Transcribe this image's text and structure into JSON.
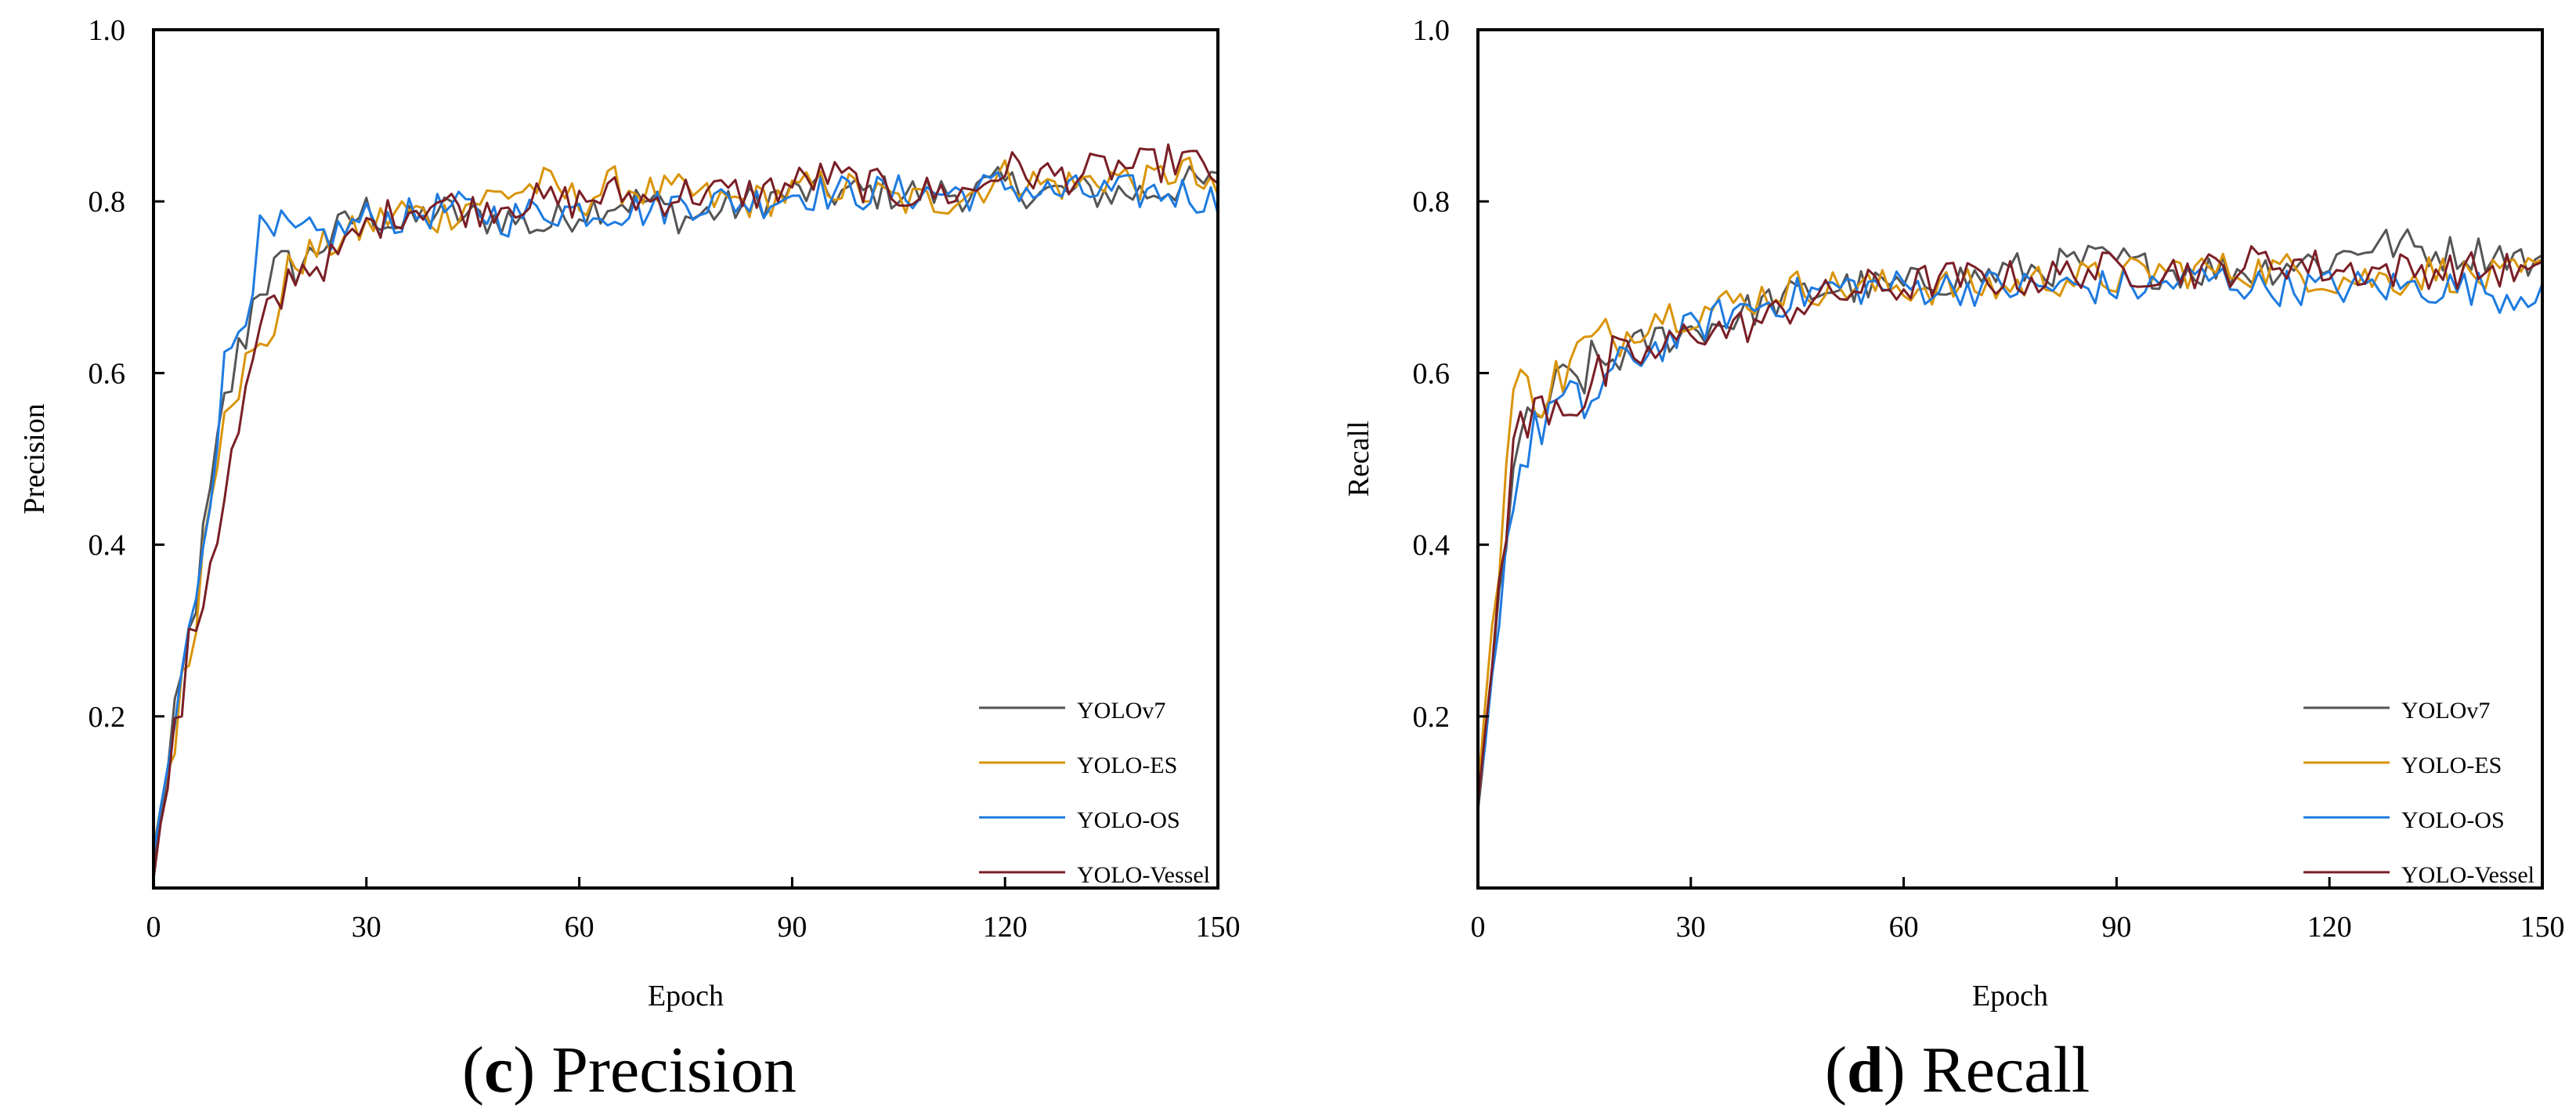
{
  "figure": {
    "panels": [
      {
        "letter": "c",
        "caption_text": "Precision"
      },
      {
        "letter": "d",
        "caption_text": "Recall"
      }
    ]
  },
  "colors": {
    "YOLOv7": "#555555",
    "YOLO-ES": "#D9940A",
    "YOLO-OS": "#1E7BE0",
    "YOLO-Vessel": "#7A1E26",
    "axis": "#000000"
  },
  "chart_data": [
    {
      "type": "line",
      "title": "",
      "xlabel": "Epoch",
      "ylabel": "Precision",
      "xlim": [
        0,
        150
      ],
      "ylim": [
        0,
        1.0
      ],
      "x_ticks": [
        0,
        30,
        60,
        90,
        120,
        150
      ],
      "y_ticks": [
        0.2,
        0.4,
        0.6,
        0.8,
        1.0
      ],
      "y_tick_labels": [
        "0.2",
        "0.4",
        "0.6",
        "0.8",
        "1.0"
      ],
      "grid": false,
      "legend_position": "bottom-right",
      "x": [
        0,
        5,
        10,
        15,
        20,
        25,
        30,
        35,
        40,
        45,
        50,
        55,
        60,
        65,
        70,
        75,
        80,
        85,
        90,
        95,
        100,
        105,
        110,
        115,
        120,
        125,
        130,
        135,
        140,
        145,
        150
      ],
      "series": [
        {
          "name": "YOLOv7",
          "values": [
            0.03,
            0.29,
            0.56,
            0.71,
            0.72,
            0.76,
            0.79,
            0.77,
            0.79,
            0.78,
            0.78,
            0.77,
            0.79,
            0.8,
            0.8,
            0.78,
            0.79,
            0.8,
            0.81,
            0.81,
            0.81,
            0.81,
            0.81,
            0.81,
            0.82,
            0.81,
            0.81,
            0.81,
            0.81,
            0.82,
            0.82
          ]
        },
        {
          "name": "YOLO-ES",
          "values": [
            0.05,
            0.27,
            0.58,
            0.62,
            0.73,
            0.75,
            0.77,
            0.79,
            0.78,
            0.8,
            0.81,
            0.82,
            0.8,
            0.82,
            0.81,
            0.81,
            0.8,
            0.8,
            0.81,
            0.82,
            0.81,
            0.8,
            0.8,
            0.81,
            0.83,
            0.82,
            0.82,
            0.83,
            0.82,
            0.84,
            0.8
          ]
        },
        {
          "name": "YOLO-OS",
          "values": [
            0.04,
            0.29,
            0.6,
            0.75,
            0.76,
            0.76,
            0.78,
            0.78,
            0.79,
            0.79,
            0.78,
            0.79,
            0.79,
            0.79,
            0.79,
            0.8,
            0.8,
            0.8,
            0.81,
            0.81,
            0.81,
            0.81,
            0.81,
            0.81,
            0.82,
            0.81,
            0.81,
            0.81,
            0.81,
            0.81,
            0.8
          ]
        },
        {
          "name": "YOLO-Vessel",
          "values": [
            0.02,
            0.27,
            0.46,
            0.64,
            0.72,
            0.73,
            0.77,
            0.79,
            0.8,
            0.79,
            0.8,
            0.8,
            0.8,
            0.81,
            0.8,
            0.81,
            0.81,
            0.81,
            0.82,
            0.83,
            0.82,
            0.81,
            0.81,
            0.81,
            0.84,
            0.83,
            0.83,
            0.84,
            0.84,
            0.85,
            0.83
          ]
        }
      ]
    },
    {
      "type": "line",
      "title": "",
      "xlabel": "Epoch",
      "ylabel": "Recall",
      "xlim": [
        0,
        150
      ],
      "ylim": [
        0,
        1.0
      ],
      "x_ticks": [
        0,
        30,
        60,
        90,
        120,
        150
      ],
      "y_ticks": [
        0.2,
        0.4,
        0.6,
        0.8,
        1.0
      ],
      "y_tick_labels": [
        "0.2",
        "0.4",
        "0.6",
        "0.8",
        "1.0"
      ],
      "grid": false,
      "legend_position": "bottom-right",
      "x": [
        0,
        5,
        10,
        15,
        20,
        25,
        30,
        35,
        40,
        45,
        50,
        55,
        60,
        65,
        70,
        75,
        80,
        85,
        90,
        95,
        100,
        105,
        110,
        115,
        120,
        125,
        130,
        135,
        140,
        145,
        150
      ],
      "series": [
        {
          "name": "YOLOv7",
          "values": [
            0.08,
            0.5,
            0.57,
            0.6,
            0.62,
            0.64,
            0.65,
            0.66,
            0.68,
            0.69,
            0.7,
            0.7,
            0.7,
            0.71,
            0.71,
            0.72,
            0.72,
            0.73,
            0.73,
            0.72,
            0.72,
            0.72,
            0.72,
            0.73,
            0.73,
            0.75,
            0.75,
            0.74,
            0.74,
            0.74,
            0.72
          ]
        },
        {
          "name": "YOLO-ES",
          "values": [
            0.12,
            0.58,
            0.58,
            0.63,
            0.64,
            0.67,
            0.67,
            0.68,
            0.69,
            0.7,
            0.7,
            0.7,
            0.7,
            0.7,
            0.7,
            0.7,
            0.71,
            0.71,
            0.71,
            0.72,
            0.72,
            0.72,
            0.72,
            0.72,
            0.71,
            0.71,
            0.71,
            0.72,
            0.71,
            0.71,
            0.72
          ]
        },
        {
          "name": "YOLO-OS",
          "values": [
            0.1,
            0.47,
            0.56,
            0.56,
            0.61,
            0.63,
            0.65,
            0.67,
            0.68,
            0.69,
            0.7,
            0.7,
            0.7,
            0.7,
            0.7,
            0.7,
            0.7,
            0.7,
            0.7,
            0.7,
            0.71,
            0.71,
            0.7,
            0.7,
            0.7,
            0.7,
            0.7,
            0.7,
            0.7,
            0.69,
            0.7
          ]
        },
        {
          "name": "YOLO-Vessel",
          "values": [
            0.09,
            0.52,
            0.57,
            0.57,
            0.62,
            0.62,
            0.65,
            0.65,
            0.66,
            0.68,
            0.69,
            0.7,
            0.7,
            0.71,
            0.71,
            0.71,
            0.71,
            0.72,
            0.72,
            0.72,
            0.72,
            0.72,
            0.73,
            0.73,
            0.72,
            0.72,
            0.72,
            0.72,
            0.72,
            0.72,
            0.71
          ]
        }
      ]
    }
  ]
}
